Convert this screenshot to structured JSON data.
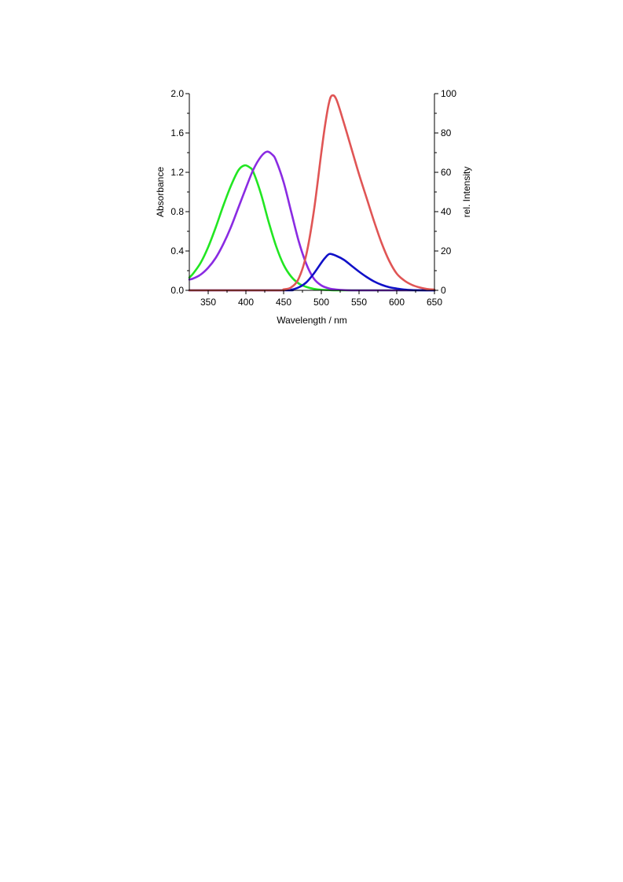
{
  "chart_data": {
    "type": "line",
    "xlabel": "Wavelength / nm",
    "ylabel_left": "Absorbance",
    "ylabel_right": "rel. Intensity",
    "xlim": [
      325,
      650
    ],
    "ylim_left": [
      0,
      2.0
    ],
    "ylim_right": [
      0,
      100
    ],
    "x_ticks": [
      350,
      400,
      450,
      500,
      550,
      600,
      650
    ],
    "y_left_ticks": [
      0.0,
      0.4,
      0.8,
      1.2,
      1.6,
      2.0
    ],
    "y_right_ticks": [
      0,
      20,
      40,
      60,
      80,
      100
    ],
    "x_tick_labels": [
      "350",
      "400",
      "450",
      "500",
      "550",
      "600",
      "650"
    ],
    "y_left_tick_labels": [
      "0.0",
      "0.4",
      "0.8",
      "1.2",
      "1.6",
      "2.0"
    ],
    "y_right_tick_labels": [
      "0",
      "20",
      "40",
      "60",
      "80",
      "100"
    ],
    "grid": false,
    "series": [
      {
        "axis": "left",
        "color": "#22e622",
        "x": [
          325,
          330,
          340,
          350,
          360,
          370,
          380,
          390,
          398,
          405,
          410,
          420,
          430,
          440,
          450,
          460,
          470,
          480,
          490,
          500,
          510,
          520,
          540,
          560,
          600,
          650
        ],
        "y": [
          0.13,
          0.17,
          0.28,
          0.44,
          0.64,
          0.86,
          1.06,
          1.22,
          1.27,
          1.25,
          1.2,
          0.98,
          0.7,
          0.45,
          0.26,
          0.14,
          0.07,
          0.035,
          0.015,
          0.006,
          0.003,
          0.0,
          0.0,
          0.0,
          0.0,
          0.0
        ]
      },
      {
        "axis": "left",
        "color": "#8a2be2",
        "x": [
          325,
          330,
          340,
          350,
          360,
          370,
          380,
          390,
          400,
          410,
          420,
          428,
          435,
          440,
          450,
          460,
          470,
          480,
          490,
          500,
          510,
          520,
          540,
          560,
          600,
          650
        ],
        "y": [
          0.11,
          0.12,
          0.16,
          0.23,
          0.33,
          0.47,
          0.64,
          0.84,
          1.04,
          1.23,
          1.36,
          1.41,
          1.38,
          1.32,
          1.1,
          0.8,
          0.5,
          0.27,
          0.12,
          0.05,
          0.02,
          0.008,
          0.0,
          0.0,
          0.0,
          0.0
        ]
      },
      {
        "axis": "right",
        "color": "#1010c8",
        "x": [
          325,
          450,
          460,
          470,
          480,
          490,
          500,
          505,
          511,
          520,
          530,
          540,
          550,
          560,
          570,
          580,
          590,
          600,
          610,
          620,
          630,
          650
        ],
        "y": [
          0,
          0,
          0.3,
          1.5,
          4.0,
          8.5,
          14.0,
          16.5,
          18.5,
          17.5,
          15.5,
          12.5,
          9.5,
          6.8,
          4.5,
          2.8,
          1.6,
          0.9,
          0.4,
          0.15,
          0.05,
          0
        ]
      },
      {
        "axis": "right",
        "color": "#e05555",
        "x": [
          325,
          440,
          450,
          460,
          470,
          480,
          490,
          500,
          505,
          510,
          514,
          520,
          530,
          540,
          550,
          560,
          570,
          580,
          590,
          600,
          610,
          620,
          630,
          640,
          650
        ],
        "y": [
          0,
          0,
          0.5,
          1.5,
          6.0,
          18.0,
          40.0,
          70.0,
          84.0,
          95.0,
          99.0,
          97.0,
          85.0,
          72.0,
          59.0,
          47.0,
          35.0,
          24.0,
          15.0,
          8.5,
          5.0,
          2.8,
          1.5,
          0.7,
          0.4
        ]
      }
    ]
  }
}
